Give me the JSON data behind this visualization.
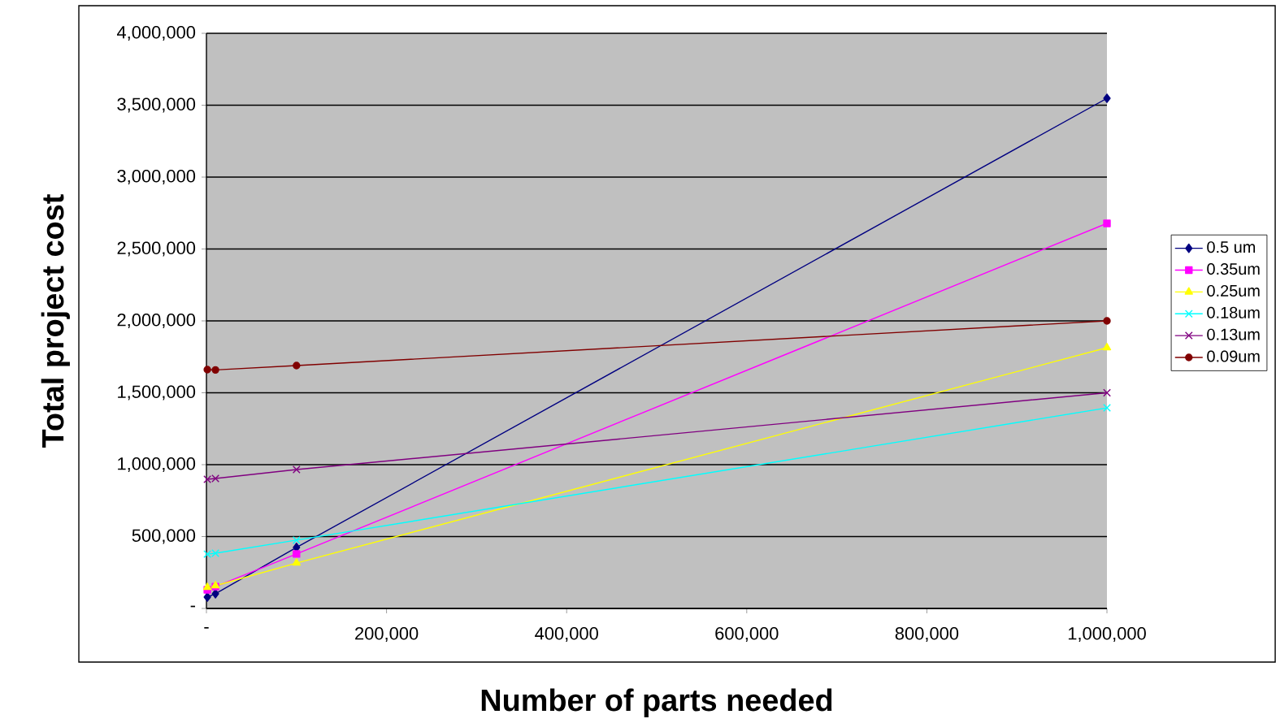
{
  "chart_data": {
    "type": "line",
    "xlabel": "Number of parts needed",
    "ylabel": "Total project cost",
    "x": [
      1000,
      10000,
      100000,
      1000000
    ],
    "series": [
      {
        "name": "0.5 um",
        "color": "#000080",
        "marker": "diamond",
        "values": [
          79000,
          102000,
          424000,
          3548000
        ]
      },
      {
        "name": "0.35um",
        "color": "#ff00ff",
        "marker": "square",
        "values": [
          130000,
          152000,
          379000,
          2678000
        ]
      },
      {
        "name": "0.25um",
        "color": "#ffff00",
        "marker": "triangle",
        "values": [
          147000,
          158000,
          316000,
          1814000
        ]
      },
      {
        "name": "0.18um",
        "color": "#00ffff",
        "marker": "cross",
        "values": [
          378000,
          384000,
          475000,
          1395000
        ]
      },
      {
        "name": "0.13um",
        "color": "#800080",
        "marker": "cross",
        "values": [
          898000,
          904000,
          966000,
          1500000
        ]
      },
      {
        "name": "0.09um",
        "color": "#800000",
        "marker": "circle",
        "values": [
          1661000,
          1659000,
          1689000,
          2000000
        ]
      }
    ],
    "xlim": [
      0,
      1000000
    ],
    "ylim": [
      0,
      4000000
    ],
    "xticks": [
      {
        "value": 0,
        "label": "-"
      },
      {
        "value": 200000,
        "label": "200,000"
      },
      {
        "value": 400000,
        "label": "400,000"
      },
      {
        "value": 600000,
        "label": "600,000"
      },
      {
        "value": 800000,
        "label": "800,000"
      },
      {
        "value": 1000000,
        "label": "1,000,000"
      }
    ],
    "yticks": [
      {
        "value": 0,
        "label": "-"
      },
      {
        "value": 500000,
        "label": "500,000"
      },
      {
        "value": 1000000,
        "label": "1,000,000"
      },
      {
        "value": 1500000,
        "label": "1,500,000"
      },
      {
        "value": 2000000,
        "label": "2,000,000"
      },
      {
        "value": 2500000,
        "label": "2,500,000"
      },
      {
        "value": 3000000,
        "label": "3,000,000"
      },
      {
        "value": 3500000,
        "label": "3,500,000"
      },
      {
        "value": 4000000,
        "label": "4,000,000"
      }
    ],
    "grid": "y",
    "legend": "right",
    "line_style": "solid"
  }
}
